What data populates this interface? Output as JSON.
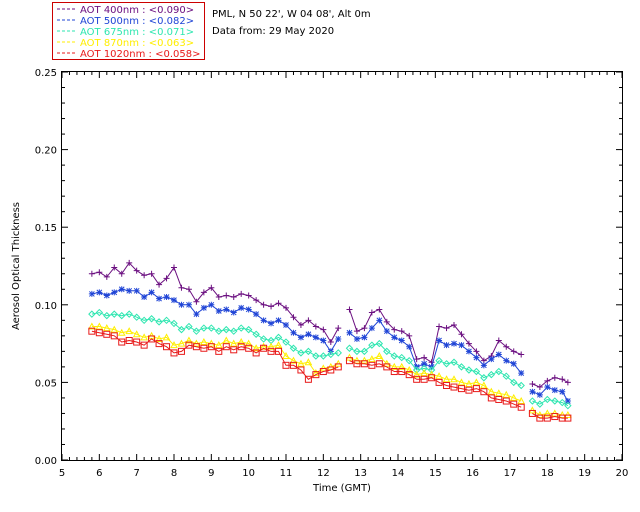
{
  "info": {
    "site_line": "PML, N 50 22', W 04 08', Alt 0m",
    "date_line": "Data from: 29 May 2020"
  },
  "chart_data": {
    "type": "line",
    "xlabel": "Time (GMT)",
    "ylabel": "Aerosol Optical Thickness",
    "xlim": [
      5,
      20
    ],
    "ylim": [
      0,
      0.25
    ],
    "x_ticks": [
      "5",
      "6",
      "7",
      "8",
      "9",
      "10",
      "11",
      "12",
      "13",
      "14",
      "15",
      "16",
      "17",
      "18",
      "19",
      "20"
    ],
    "y_ticks": [
      "0.00",
      "0.05",
      "0.10",
      "0.15",
      "0.20",
      "0.25"
    ],
    "legend_position": "top-left",
    "series": [
      {
        "name": "AOT  400nm : <0.090>",
        "color": "#6b0f80",
        "marker": "plus",
        "x": [
          5.8,
          6.0,
          6.2,
          6.4,
          6.6,
          6.8,
          7.0,
          7.2,
          7.4,
          7.6,
          7.8,
          8.0,
          8.2,
          8.4,
          8.6,
          8.8,
          9.0,
          9.2,
          9.4,
          9.6,
          9.8,
          10.0,
          10.2,
          10.4,
          10.6,
          10.8,
          11.0,
          11.2,
          11.4,
          11.6,
          11.8,
          12.0,
          12.2,
          12.4,
          12.7,
          12.9,
          13.1,
          13.3,
          13.5,
          13.7,
          13.9,
          14.1,
          14.3,
          14.5,
          14.7,
          14.9,
          15.1,
          15.3,
          15.5,
          15.7,
          15.9,
          16.1,
          16.3,
          16.5,
          16.7,
          16.9,
          17.1,
          17.3,
          17.6,
          17.8,
          18.0,
          18.2,
          18.4,
          18.55
        ],
        "y": [
          0.12,
          0.121,
          0.118,
          0.124,
          0.12,
          0.127,
          0.122,
          0.119,
          0.12,
          0.113,
          0.117,
          0.124,
          0.111,
          0.11,
          0.102,
          0.108,
          0.111,
          0.105,
          0.106,
          0.105,
          0.107,
          0.106,
          0.103,
          0.1,
          0.099,
          0.101,
          0.098,
          0.092,
          0.087,
          0.09,
          0.086,
          0.084,
          0.076,
          0.085,
          0.097,
          0.083,
          0.085,
          0.095,
          0.097,
          0.089,
          0.084,
          0.083,
          0.08,
          0.065,
          0.066,
          0.063,
          0.086,
          0.085,
          0.087,
          0.081,
          0.075,
          0.07,
          0.064,
          0.067,
          0.077,
          0.073,
          0.07,
          0.068,
          0.049,
          0.047,
          0.051,
          0.053,
          0.052,
          0.05
        ]
      },
      {
        "name": "AOT  500nm : <0.082>",
        "color": "#1f44d6",
        "marker": "star",
        "x": [
          5.8,
          6.0,
          6.2,
          6.4,
          6.6,
          6.8,
          7.0,
          7.2,
          7.4,
          7.6,
          7.8,
          8.0,
          8.2,
          8.4,
          8.6,
          8.8,
          9.0,
          9.2,
          9.4,
          9.6,
          9.8,
          10.0,
          10.2,
          10.4,
          10.6,
          10.8,
          11.0,
          11.2,
          11.4,
          11.6,
          11.8,
          12.0,
          12.2,
          12.4,
          12.7,
          12.9,
          13.1,
          13.3,
          13.5,
          13.7,
          13.9,
          14.1,
          14.3,
          14.5,
          14.7,
          14.9,
          15.1,
          15.3,
          15.5,
          15.7,
          15.9,
          16.1,
          16.3,
          16.5,
          16.7,
          16.9,
          17.1,
          17.3,
          17.6,
          17.8,
          18.0,
          18.2,
          18.4,
          18.55
        ],
        "y": [
          0.107,
          0.108,
          0.106,
          0.108,
          0.11,
          0.109,
          0.109,
          0.105,
          0.108,
          0.104,
          0.105,
          0.103,
          0.1,
          0.1,
          0.094,
          0.098,
          0.1,
          0.096,
          0.097,
          0.095,
          0.098,
          0.097,
          0.094,
          0.09,
          0.088,
          0.09,
          0.087,
          0.082,
          0.079,
          0.081,
          0.079,
          0.077,
          0.07,
          0.078,
          0.082,
          0.078,
          0.079,
          0.085,
          0.09,
          0.083,
          0.079,
          0.077,
          0.073,
          0.06,
          0.062,
          0.06,
          0.077,
          0.074,
          0.075,
          0.074,
          0.07,
          0.066,
          0.061,
          0.065,
          0.068,
          0.064,
          0.062,
          0.056,
          0.044,
          0.042,
          0.047,
          0.045,
          0.044,
          0.038
        ]
      },
      {
        "name": "AOT  675nm : <0.071>",
        "color": "#2ee6b0",
        "marker": "diamond",
        "x": [
          5.8,
          6.0,
          6.2,
          6.4,
          6.6,
          6.8,
          7.0,
          7.2,
          7.4,
          7.6,
          7.8,
          8.0,
          8.2,
          8.4,
          8.6,
          8.8,
          9.0,
          9.2,
          9.4,
          9.6,
          9.8,
          10.0,
          10.2,
          10.4,
          10.6,
          10.8,
          11.0,
          11.2,
          11.4,
          11.6,
          11.8,
          12.0,
          12.2,
          12.4,
          12.7,
          12.9,
          13.1,
          13.3,
          13.5,
          13.7,
          13.9,
          14.1,
          14.3,
          14.5,
          14.7,
          14.9,
          15.1,
          15.3,
          15.5,
          15.7,
          15.9,
          16.1,
          16.3,
          16.5,
          16.7,
          16.9,
          17.1,
          17.3,
          17.6,
          17.8,
          18.0,
          18.2,
          18.4,
          18.55
        ],
        "y": [
          0.094,
          0.095,
          0.093,
          0.094,
          0.093,
          0.094,
          0.092,
          0.09,
          0.091,
          0.089,
          0.09,
          0.088,
          0.084,
          0.086,
          0.083,
          0.085,
          0.085,
          0.083,
          0.084,
          0.083,
          0.085,
          0.084,
          0.081,
          0.078,
          0.077,
          0.079,
          0.076,
          0.072,
          0.069,
          0.07,
          0.067,
          0.067,
          0.068,
          0.069,
          0.072,
          0.07,
          0.07,
          0.074,
          0.075,
          0.07,
          0.067,
          0.066,
          0.064,
          0.058,
          0.059,
          0.058,
          0.064,
          0.062,
          0.063,
          0.06,
          0.058,
          0.057,
          0.053,
          0.055,
          0.057,
          0.054,
          0.05,
          0.048,
          0.038,
          0.036,
          0.039,
          0.038,
          0.037,
          0.035
        ]
      },
      {
        "name": "AOT  870nm : <0.063>",
        "color": "#ffee00",
        "marker": "triangle",
        "x": [
          5.8,
          6.0,
          6.2,
          6.4,
          6.6,
          6.8,
          7.0,
          7.2,
          7.4,
          7.6,
          7.8,
          8.0,
          8.2,
          8.4,
          8.6,
          8.8,
          9.0,
          9.2,
          9.4,
          9.6,
          9.8,
          10.0,
          10.2,
          10.4,
          10.6,
          10.8,
          11.0,
          11.2,
          11.4,
          11.6,
          11.8,
          12.0,
          12.2,
          12.4,
          12.7,
          12.9,
          13.1,
          13.3,
          13.5,
          13.7,
          13.9,
          14.1,
          14.3,
          14.5,
          14.7,
          14.9,
          15.1,
          15.3,
          15.5,
          15.7,
          15.9,
          16.1,
          16.3,
          16.5,
          16.7,
          16.9,
          17.1,
          17.3,
          17.6,
          17.8,
          18.0,
          18.2,
          18.4,
          18.55
        ],
        "y": [
          0.086,
          0.086,
          0.085,
          0.084,
          0.082,
          0.083,
          0.081,
          0.079,
          0.08,
          0.078,
          0.079,
          0.074,
          0.075,
          0.077,
          0.075,
          0.076,
          0.075,
          0.074,
          0.077,
          0.075,
          0.076,
          0.075,
          0.072,
          0.073,
          0.073,
          0.074,
          0.067,
          0.064,
          0.062,
          0.063,
          0.056,
          0.059,
          0.06,
          0.062,
          0.066,
          0.064,
          0.064,
          0.065,
          0.067,
          0.062,
          0.06,
          0.06,
          0.058,
          0.055,
          0.056,
          0.055,
          0.054,
          0.052,
          0.052,
          0.05,
          0.049,
          0.05,
          0.048,
          0.044,
          0.043,
          0.042,
          0.04,
          0.038,
          0.032,
          0.029,
          0.03,
          0.03,
          0.029,
          0.029
        ]
      },
      {
        "name": "AOT 1020nm : <0.058>",
        "color": "#e81a1a",
        "marker": "square",
        "x": [
          5.8,
          6.0,
          6.2,
          6.4,
          6.6,
          6.8,
          7.0,
          7.2,
          7.4,
          7.6,
          7.8,
          8.0,
          8.2,
          8.4,
          8.6,
          8.8,
          9.0,
          9.2,
          9.4,
          9.6,
          9.8,
          10.0,
          10.2,
          10.4,
          10.6,
          10.8,
          11.0,
          11.2,
          11.4,
          11.6,
          11.8,
          12.0,
          12.2,
          12.4,
          12.7,
          12.9,
          13.1,
          13.3,
          13.5,
          13.7,
          13.9,
          14.1,
          14.3,
          14.5,
          14.7,
          14.9,
          15.1,
          15.3,
          15.5,
          15.7,
          15.9,
          16.1,
          16.3,
          16.5,
          16.7,
          16.9,
          17.1,
          17.3,
          17.6,
          17.8,
          18.0,
          18.2,
          18.4,
          18.55
        ],
        "y": [
          0.083,
          0.082,
          0.081,
          0.08,
          0.076,
          0.077,
          0.076,
          0.074,
          0.078,
          0.075,
          0.073,
          0.069,
          0.07,
          0.074,
          0.073,
          0.072,
          0.073,
          0.07,
          0.073,
          0.071,
          0.073,
          0.072,
          0.069,
          0.072,
          0.07,
          0.07,
          0.061,
          0.061,
          0.058,
          0.052,
          0.055,
          0.057,
          0.058,
          0.06,
          0.064,
          0.062,
          0.062,
          0.061,
          0.062,
          0.06,
          0.057,
          0.057,
          0.055,
          0.052,
          0.052,
          0.053,
          0.05,
          0.048,
          0.047,
          0.046,
          0.045,
          0.046,
          0.044,
          0.04,
          0.039,
          0.038,
          0.036,
          0.034,
          0.03,
          0.027,
          0.027,
          0.028,
          0.027,
          0.027
        ]
      }
    ]
  }
}
